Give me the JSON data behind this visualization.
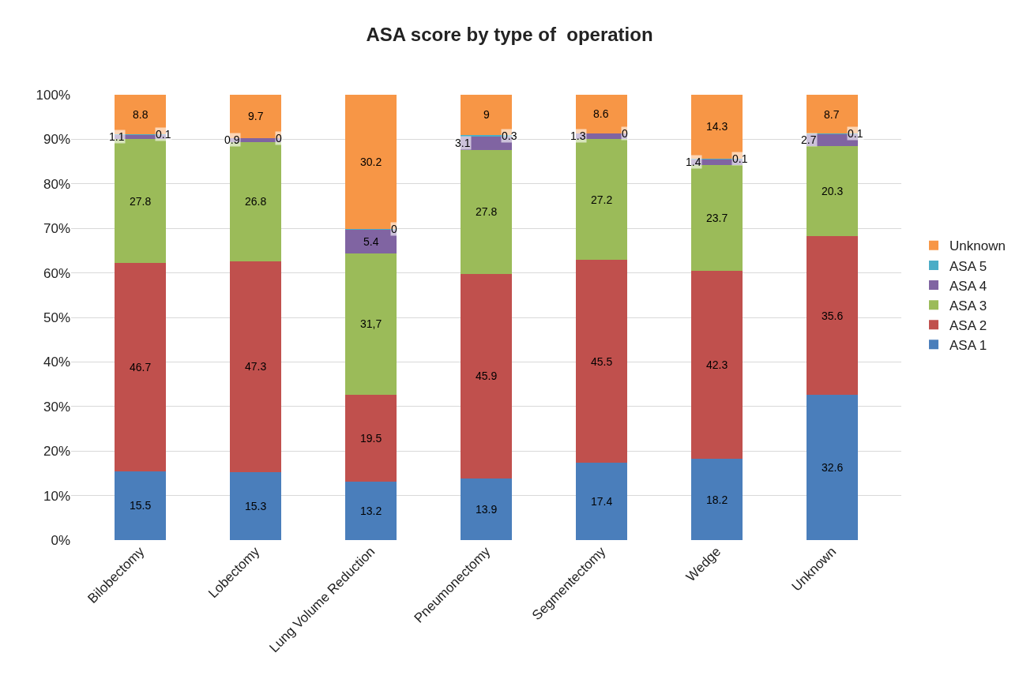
{
  "chart_data": {
    "type": "bar",
    "title": "ASA score by type of  operation",
    "stacked": true,
    "categories": [
      "Bilobectomy",
      "Lobectomy",
      "Lung Volume Reduction",
      "Pneumonectomy",
      "Segmentectomy",
      "Wedge",
      "Unknown"
    ],
    "series": [
      {
        "name": "ASA 1",
        "color": "#4a7ebb",
        "values": [
          15.5,
          15.3,
          13.2,
          13.9,
          17.4,
          18.2,
          32.6
        ],
        "value_labels": [
          "15.5",
          "15.3",
          "13.2",
          "13.9",
          "17.4",
          "18.2",
          "32.6"
        ]
      },
      {
        "name": "ASA 2",
        "color": "#c0504d",
        "values": [
          46.7,
          47.3,
          19.5,
          45.9,
          45.5,
          42.3,
          35.6
        ],
        "value_labels": [
          "46.7",
          "47.3",
          "19.5",
          "45.9",
          "45.5",
          "42.3",
          "35.6"
        ]
      },
      {
        "name": "ASA 3",
        "color": "#9bbb59",
        "values": [
          27.8,
          26.8,
          31.7,
          27.8,
          27.2,
          23.7,
          20.3
        ],
        "value_labels": [
          "27.8",
          "26.8",
          "31,7",
          "27.8",
          "27.2",
          "23.7",
          "20.3"
        ]
      },
      {
        "name": "ASA 4",
        "color": "#8064a2",
        "values": [
          1.1,
          0.9,
          5.4,
          3.1,
          1.3,
          1.4,
          2.7
        ],
        "value_labels": [
          "1.1",
          "0.9",
          "5.4",
          "3.1",
          "1.3",
          "1.4",
          "2.7"
        ]
      },
      {
        "name": "ASA 5",
        "color": "#4bacc6",
        "values": [
          0.1,
          0,
          0,
          0.3,
          0,
          0.1,
          0.1
        ],
        "value_labels": [
          "0.1",
          "0",
          "0",
          "0.3",
          "0",
          "0.1",
          "0.1"
        ]
      },
      {
        "name": "Unknown",
        "color": "#f79646",
        "values": [
          8.8,
          9.7,
          30.2,
          9,
          8.6,
          14.3,
          8.7
        ],
        "value_labels": [
          "8.8",
          "9.7",
          "30.2",
          "9",
          "8.6",
          "14.3",
          "8.7"
        ]
      }
    ],
    "ylim": [
      0,
      100
    ],
    "yticks": [
      {
        "value": 0,
        "label": "0%"
      },
      {
        "value": 10,
        "label": "10%"
      },
      {
        "value": 20,
        "label": "20%"
      },
      {
        "value": 30,
        "label": "30%"
      },
      {
        "value": 40,
        "label": "40%"
      },
      {
        "value": 50,
        "label": "50%"
      },
      {
        "value": 60,
        "label": "60%"
      },
      {
        "value": 70,
        "label": "70%"
      },
      {
        "value": 80,
        "label": "80%"
      },
      {
        "value": 90,
        "label": "90%"
      },
      {
        "value": 100,
        "label": "100%"
      }
    ],
    "grid": "y",
    "legend": "right"
  }
}
